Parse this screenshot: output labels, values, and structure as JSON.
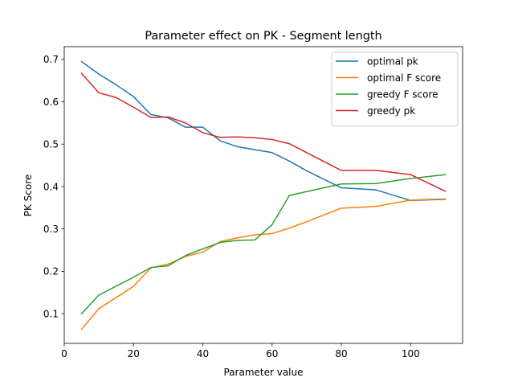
{
  "chart_data": {
    "type": "line",
    "title": "Parameter effect on PK - Segment length",
    "xlabel": "Parameter value",
    "ylabel": "PK Score",
    "xlim": [
      0,
      115
    ],
    "ylim": [
      0.03,
      0.73
    ],
    "xticks": [
      0,
      20,
      40,
      60,
      80,
      100
    ],
    "yticks": [
      0.1,
      0.2,
      0.3,
      0.4,
      0.5,
      0.6,
      0.7
    ],
    "xtick_labels": [
      "0",
      "20",
      "40",
      "60",
      "80",
      "100"
    ],
    "ytick_labels": [
      "0.1",
      "0.2",
      "0.3",
      "0.4",
      "0.5",
      "0.6",
      "0.7"
    ],
    "grid": false,
    "legend_position": "upper right",
    "series": [
      {
        "name": "optimal pk",
        "color": "#1f77b4",
        "x": [
          5,
          10,
          15,
          20,
          25,
          30,
          35,
          40,
          45,
          50,
          55,
          60,
          65,
          70,
          80,
          90,
          100,
          110
        ],
        "y": [
          0.695,
          0.665,
          0.64,
          0.612,
          0.57,
          0.562,
          0.54,
          0.54,
          0.508,
          0.494,
          0.487,
          0.48,
          0.46,
          0.437,
          0.397,
          0.392,
          0.367,
          0.37
        ]
      },
      {
        "name": "optimal F score",
        "color": "#ff7f0e",
        "x": [
          5,
          10,
          15,
          20,
          25,
          30,
          35,
          40,
          45,
          50,
          55,
          60,
          65,
          70,
          80,
          90,
          100,
          110
        ],
        "y": [
          0.063,
          0.112,
          0.138,
          0.165,
          0.208,
          0.217,
          0.235,
          0.245,
          0.27,
          0.279,
          0.286,
          0.289,
          0.302,
          0.317,
          0.349,
          0.353,
          0.368,
          0.371
        ]
      },
      {
        "name": "greedy F score",
        "color": "#2ca02c",
        "x": [
          5,
          10,
          15,
          20,
          25,
          30,
          35,
          40,
          45,
          50,
          55,
          60,
          65,
          70,
          80,
          90,
          100,
          110
        ],
        "y": [
          0.1,
          0.144,
          0.165,
          0.186,
          0.209,
          0.213,
          0.237,
          0.253,
          0.268,
          0.273,
          0.274,
          0.31,
          0.379,
          0.388,
          0.406,
          0.407,
          0.419,
          0.428
        ]
      },
      {
        "name": "greedy pk",
        "color": "#d62728",
        "x": [
          5,
          10,
          15,
          20,
          25,
          30,
          35,
          40,
          45,
          50,
          55,
          60,
          65,
          70,
          80,
          90,
          100,
          110
        ],
        "y": [
          0.667,
          0.621,
          0.61,
          0.587,
          0.563,
          0.564,
          0.55,
          0.527,
          0.516,
          0.517,
          0.515,
          0.511,
          0.501,
          0.48,
          0.438,
          0.438,
          0.428,
          0.389
        ]
      }
    ]
  }
}
